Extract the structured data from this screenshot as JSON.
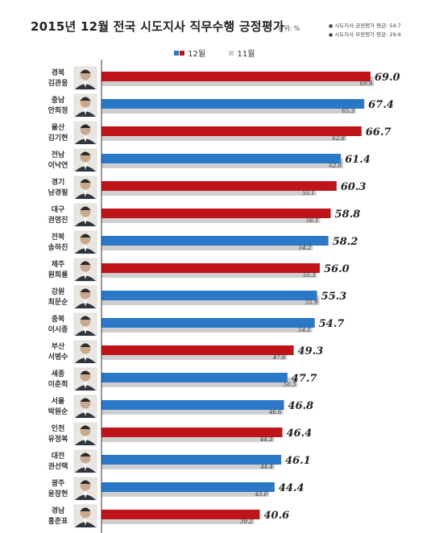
{
  "header": {
    "title": "2015년 12월 전국 시도지사 직무수행 긍정평가",
    "unit": "단위: %",
    "notes": [
      "시도지사 긍정평가 평균: 54.7",
      "시도지사 부정평가 평균: 29.6"
    ]
  },
  "colors": {
    "red": "#c0141b",
    "blue": "#2b78c8",
    "nov_bar": "#cfcfcf",
    "axis": "#333333"
  },
  "chart_data": {
    "type": "bar",
    "orientation": "horizontal",
    "title": "2015년 12월 전국 시도지사 직무수행 긍정평가",
    "unit": "단위: %",
    "legend": {
      "position": "top",
      "entries": [
        "12월",
        "11월"
      ]
    },
    "categories": [
      {
        "region": "경북",
        "governor": "김관용",
        "color": "red"
      },
      {
        "region": "충남",
        "governor": "안희정",
        "color": "blue"
      },
      {
        "region": "울산",
        "governor": "김기현",
        "color": "red"
      },
      {
        "region": "전남",
        "governor": "이낙연",
        "color": "blue"
      },
      {
        "region": "경기",
        "governor": "남경필",
        "color": "red"
      },
      {
        "region": "대구",
        "governor": "권영진",
        "color": "red"
      },
      {
        "region": "전북",
        "governor": "송하진",
        "color": "blue"
      },
      {
        "region": "제주",
        "governor": "원희룡",
        "color": "red"
      },
      {
        "region": "강원",
        "governor": "최문순",
        "color": "blue"
      },
      {
        "region": "충북",
        "governor": "이시종",
        "color": "blue"
      },
      {
        "region": "부산",
        "governor": "서병수",
        "color": "red"
      },
      {
        "region": "세종",
        "governor": "이춘희",
        "color": "blue"
      },
      {
        "region": "서울",
        "governor": "박원순",
        "color": "blue"
      },
      {
        "region": "인천",
        "governor": "유정복",
        "color": "red"
      },
      {
        "region": "대전",
        "governor": "권선택",
        "color": "blue"
      },
      {
        "region": "광주",
        "governor": "윤장현",
        "color": "blue"
      },
      {
        "region": "경남",
        "governor": "홍준표",
        "color": "red"
      }
    ],
    "series": [
      {
        "name": "12월",
        "values": [
          69.0,
          67.4,
          66.7,
          61.4,
          60.3,
          58.8,
          58.2,
          56.0,
          55.3,
          54.7,
          49.3,
          47.7,
          46.8,
          46.4,
          46.1,
          44.4,
          40.6
        ]
      },
      {
        "name": "11월",
        "values": [
          69.9,
          65.3,
          62.8,
          62.0,
          55.1,
          56.1,
          54.2,
          55.3,
          55.9,
          54.1,
          47.6,
          50.3,
          46.6,
          44.3,
          44.4,
          43.0,
          39.2
        ]
      }
    ],
    "xlim": [
      0,
      70
    ],
    "grid": false
  }
}
